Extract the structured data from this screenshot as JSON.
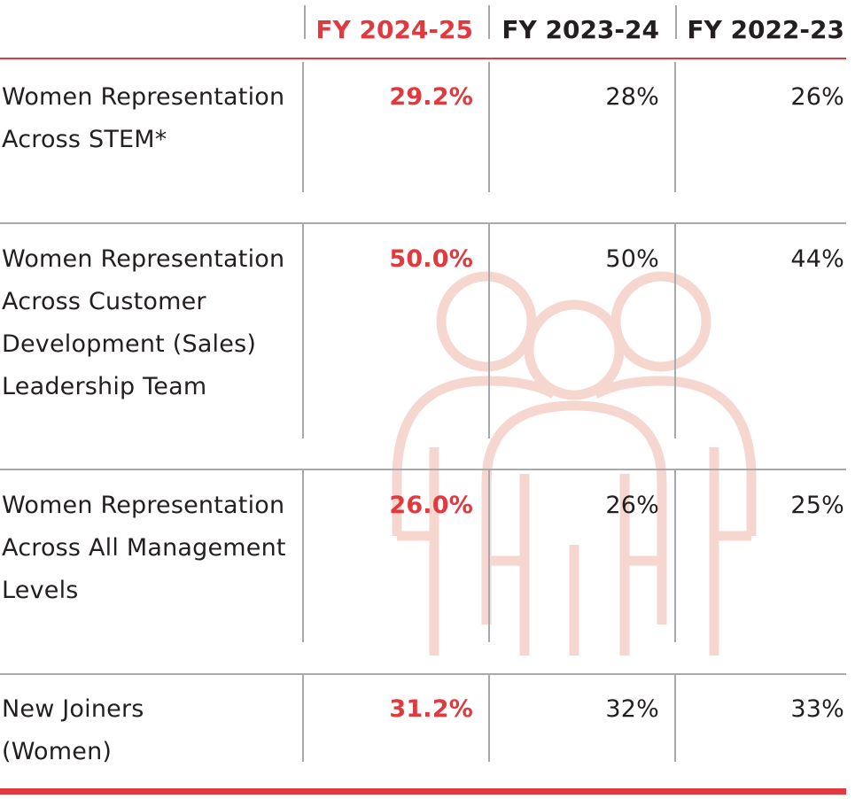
{
  "table": {
    "columns": [
      {
        "label": "FY 2024-25",
        "highlight": true
      },
      {
        "label": "FY 2023-24",
        "highlight": false
      },
      {
        "label": "FY 2022-23",
        "highlight": false
      }
    ],
    "rows": [
      {
        "metric": "Women Representation Across STEM*",
        "values": [
          "29.2%",
          "28%",
          "26%"
        ]
      },
      {
        "metric": "Women Representation Across Customer Development (Sales) Leadership Team",
        "values": [
          "50.0%",
          "50%",
          "44%"
        ]
      },
      {
        "metric": "Women Representation Across All Management Levels",
        "values": [
          "26.0%",
          "26%",
          "25%"
        ]
      },
      {
        "metric": "New Joiners (Women)",
        "values": [
          "31.2%",
          "32%",
          "33%"
        ]
      }
    ]
  },
  "colors": {
    "accent": "#e0393e",
    "rule": "#a7a9ac",
    "text": "#231f20",
    "watermark": "#f6d7d0"
  },
  "icons": {
    "watermark": "people-group-icon"
  }
}
